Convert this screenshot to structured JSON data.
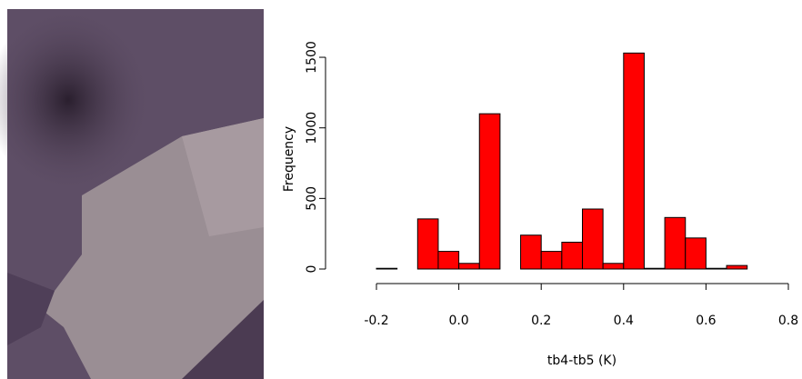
{
  "chart_data": {
    "type": "histogram",
    "xlabel": "tb4-tb5 (K)",
    "ylabel": "Frequency",
    "bins": [
      -0.2,
      -0.15,
      -0.1,
      -0.05,
      0,
      0.05,
      0.1,
      0.15,
      0.2,
      0.25,
      0.3,
      0.35,
      0.4,
      0.45,
      0.5,
      0.55,
      0.6,
      0.65,
      0.7
    ],
    "values": [
      5,
      0,
      355,
      125,
      40,
      1100,
      0,
      240,
      125,
      190,
      425,
      40,
      1530,
      5,
      365,
      220,
      5,
      25
    ],
    "color": "#ff0000",
    "xlim": [
      -0.2,
      0.8
    ],
    "xticks": [
      -0.2,
      {
        "value": 0,
        "label": "0.0"
      },
      0.2,
      0.4,
      0.6,
      0.8
    ],
    "ylim": [
      0,
      1600
    ],
    "yticks": [
      0,
      500,
      1000,
      1500
    ]
  }
}
